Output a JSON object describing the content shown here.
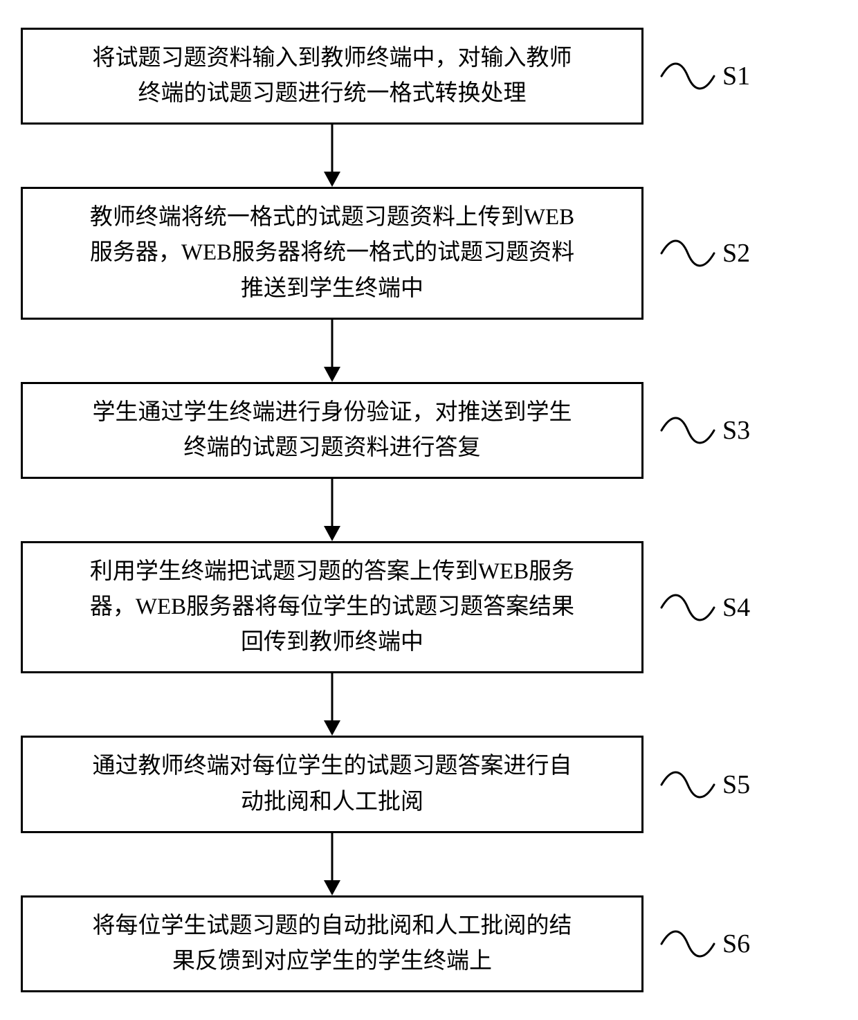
{
  "diagram": {
    "type": "flowchart",
    "direction": "top-to-bottom",
    "box_border_color": "#000000",
    "box_border_width": 3,
    "box_background": "#ffffff",
    "text_color": "#000000",
    "font_family_cjk": "SimSun",
    "font_family_label": "Times New Roman",
    "box_fontsize": 33,
    "label_fontsize": 38,
    "line_height": 1.55,
    "arrow_stroke": "#000000",
    "arrow_width": 3,
    "wave_stroke": "#000000",
    "wave_width": 3,
    "steps": [
      {
        "id": "s1",
        "label": "S1",
        "lines": [
          "将试题习题资料输入到教师终端中，对输入教师",
          "终端的试题习题进行统一格式转换处理"
        ]
      },
      {
        "id": "s2",
        "label": "S2",
        "lines": [
          "教师终端将统一格式的试题习题资料上传到WEB",
          "服务器，WEB服务器将统一格式的试题习题资料",
          "推送到学生终端中"
        ]
      },
      {
        "id": "s3",
        "label": "S3",
        "lines": [
          "学生通过学生终端进行身份验证，对推送到学生",
          "终端的试题习题资料进行答复"
        ]
      },
      {
        "id": "s4",
        "label": "S4",
        "lines": [
          "利用学生终端把试题习题的答案上传到WEB服务",
          "器，WEB服务器将每位学生的试题习题答案结果",
          "回传到教师终端中"
        ]
      },
      {
        "id": "s5",
        "label": "S5",
        "lines": [
          "通过教师终端对每位学生的试题习题答案进行自",
          "动批阅和人工批阅"
        ]
      },
      {
        "id": "s6",
        "label": "S6",
        "lines": [
          "将每位学生试题习题的自动批阅和人工批阅的结",
          "果反馈到对应学生的学生终端上"
        ]
      }
    ]
  }
}
